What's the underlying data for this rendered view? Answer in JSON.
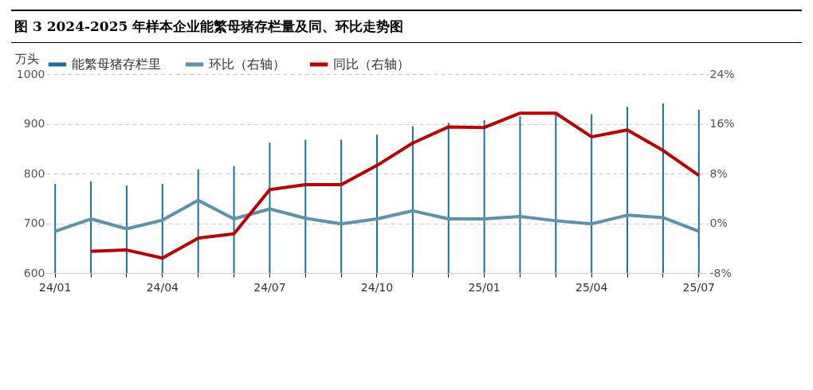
{
  "chart_data": {
    "type": "bar",
    "title": "图 3 2024-2025 年样本企业能繁母猪存栏量及同、环比走势图",
    "ylabel": "万头",
    "categories": [
      "24/01",
      null,
      null,
      "24/04",
      null,
      null,
      "24/07",
      null,
      null,
      "24/10",
      null,
      null,
      "25/01",
      null,
      null,
      "25/04",
      null,
      null,
      "25/07"
    ],
    "series": [
      {
        "name": "能繁母猪存栏里",
        "color": "#19729e",
        "values": [
          779,
          784,
          776,
          779,
          808,
          815,
          862,
          868,
          868,
          878,
          895,
          902,
          907,
          915,
          922,
          919,
          934,
          941,
          928
        ]
      },
      {
        "name": "环比（右轴）",
        "type": "line",
        "axis": "y2",
        "color": "#5b93ad",
        "values": [
          -1.3,
          0.7,
          -0.9,
          0.5,
          3.7,
          0.7,
          2.3,
          0.8,
          -0.1,
          0.7,
          2.0,
          0.7,
          0.7,
          1.1,
          0.4,
          -0.1,
          1.3,
          0.9,
          -1.3
        ]
      },
      {
        "name": "同比（右轴）",
        "type": "line",
        "axis": "y2",
        "color": "#c00000",
        "values": [
          null,
          -4.5,
          -4.3,
          -5.6,
          -2.4,
          -1.7,
          5.4,
          6.2,
          6.2,
          9.3,
          12.9,
          15.5,
          15.4,
          17.7,
          17.7,
          13.9,
          15.0,
          11.7,
          7.7
        ]
      }
    ],
    "ylim": [
      600,
      1000
    ],
    "yticks": [
      600,
      700,
      800,
      900,
      1000
    ],
    "y2lim": [
      -8,
      24
    ],
    "y2ticks": [
      {
        "value": -8,
        "label": "-8%"
      },
      {
        "value": 0,
        "label": "0%"
      },
      {
        "value": 8,
        "label": "8%"
      },
      {
        "value": 16,
        "label": "16%"
      },
      {
        "value": 24,
        "label": "24%"
      }
    ],
    "grid": "y",
    "legend": "top",
    "line_style": "solid"
  }
}
